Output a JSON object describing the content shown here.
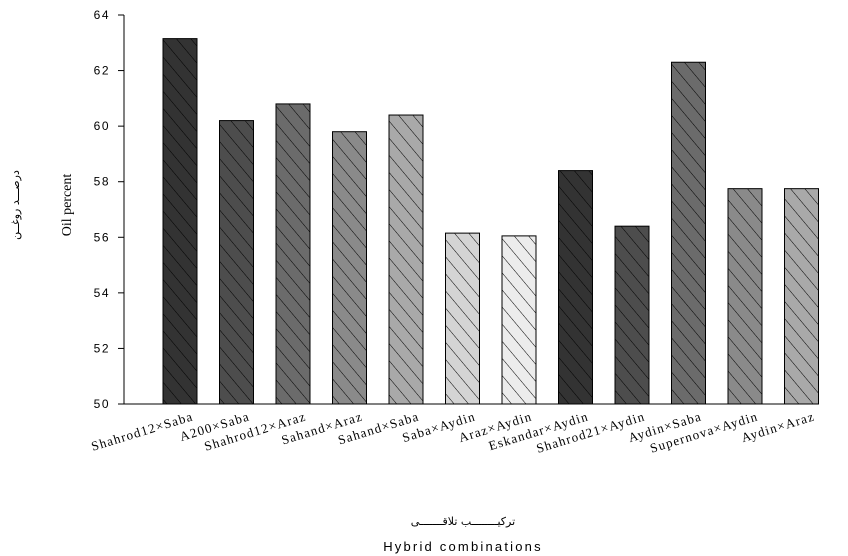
{
  "chart_data": {
    "type": "bar",
    "title": "",
    "xlabel": "Hybrid combinations",
    "xlabel_persian": "ترکیــــــــب تلاقـــــــی",
    "ylabel": "Oil percent",
    "ylabel_persian": "درصـــد روغــن",
    "ylim": [
      50,
      64
    ],
    "yticks": [
      "50",
      "52",
      "54",
      "56",
      "58",
      "60",
      "62",
      "64"
    ],
    "grid": false,
    "legend": "none",
    "categories": [
      "Shahrod12×Saba",
      "A200×Saba",
      "Shahrod12×Araz",
      "Sahand×Araz",
      "Sahand×Saba",
      "Saba×Aydin",
      "Araz×Aydin",
      "Eskandar×Aydin",
      "Shahrod21×Aydin",
      "Aydin×Saba",
      "Supernova×Aydin",
      "Aydin×Araz"
    ],
    "values": [
      63.15,
      60.2,
      60.8,
      59.8,
      60.4,
      56.15,
      56.05,
      58.4,
      56.4,
      62.3,
      57.75,
      57.75
    ],
    "bar_colors": [
      "#333333",
      "#4d4d4d",
      "#6b6b6b",
      "#8a8a8a",
      "#a9a9a9",
      "#d4d4d4",
      "#ececec",
      "#333333",
      "#4d4d4d",
      "#6b6b6b",
      "#8a8a8a",
      "#a9a9a9"
    ],
    "hatch": "diagonal"
  }
}
